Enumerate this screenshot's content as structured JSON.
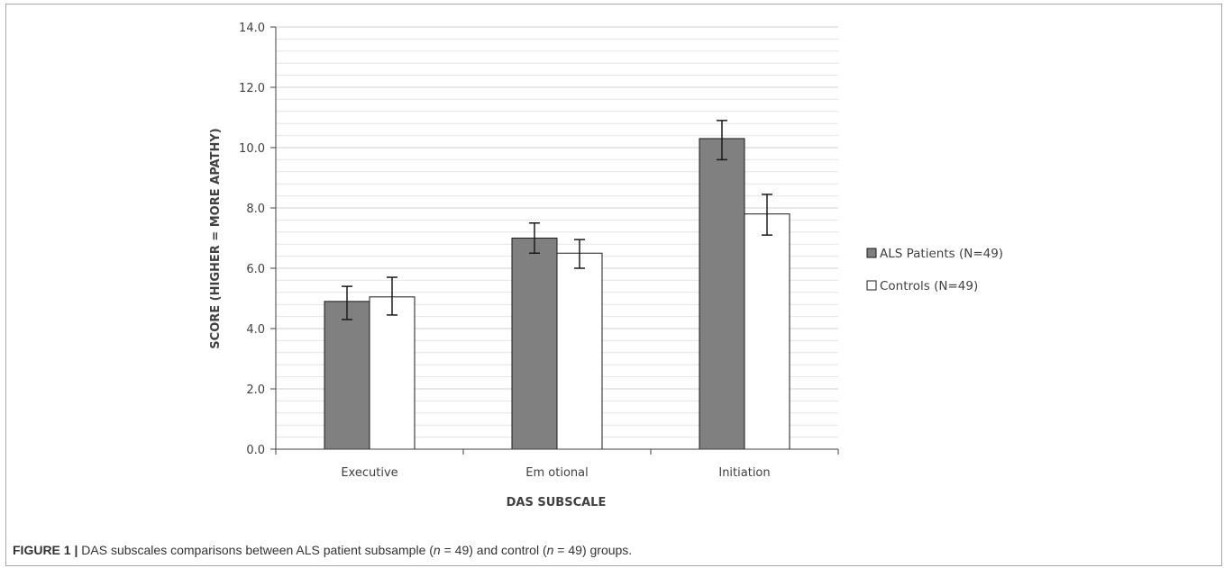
{
  "caption": {
    "label": "FIGURE 1 |",
    "text_before_n1": " DAS subscales comparisons between ALS patient subsample (",
    "n1_symbol": "n",
    "n1_value": " = 49) and control (",
    "n2_symbol": "n",
    "n2_value": " = 49) groups."
  },
  "chart_data": {
    "type": "bar",
    "title": "",
    "xlabel": "DAS SUBSCALE",
    "ylabel": "SCORE (HIGHER = MORE APATHY)",
    "ylim": [
      0,
      14
    ],
    "yticks": [
      "0.0",
      "2.0",
      "4.0",
      "6.0",
      "8.0",
      "10.0",
      "12.0",
      "14.0"
    ],
    "grid": true,
    "legend_position": "right",
    "categories": [
      "Executive",
      "Emotional",
      "Initiation"
    ],
    "category_labels_display": [
      "Executive",
      "Em otional",
      "Initiation"
    ],
    "series": [
      {
        "name": "ALS Patients (N=49)",
        "color": "#808080",
        "values": [
          4.9,
          7.0,
          10.3
        ],
        "error_low": [
          4.3,
          6.5,
          9.6
        ],
        "error_high": [
          5.4,
          7.5,
          10.9
        ]
      },
      {
        "name": "Controls (N=49)",
        "color": "#ffffff",
        "values": [
          5.05,
          6.5,
          7.8
        ],
        "error_low": [
          4.45,
          6.0,
          7.1
        ],
        "error_high": [
          5.7,
          6.95,
          8.45
        ]
      }
    ]
  }
}
